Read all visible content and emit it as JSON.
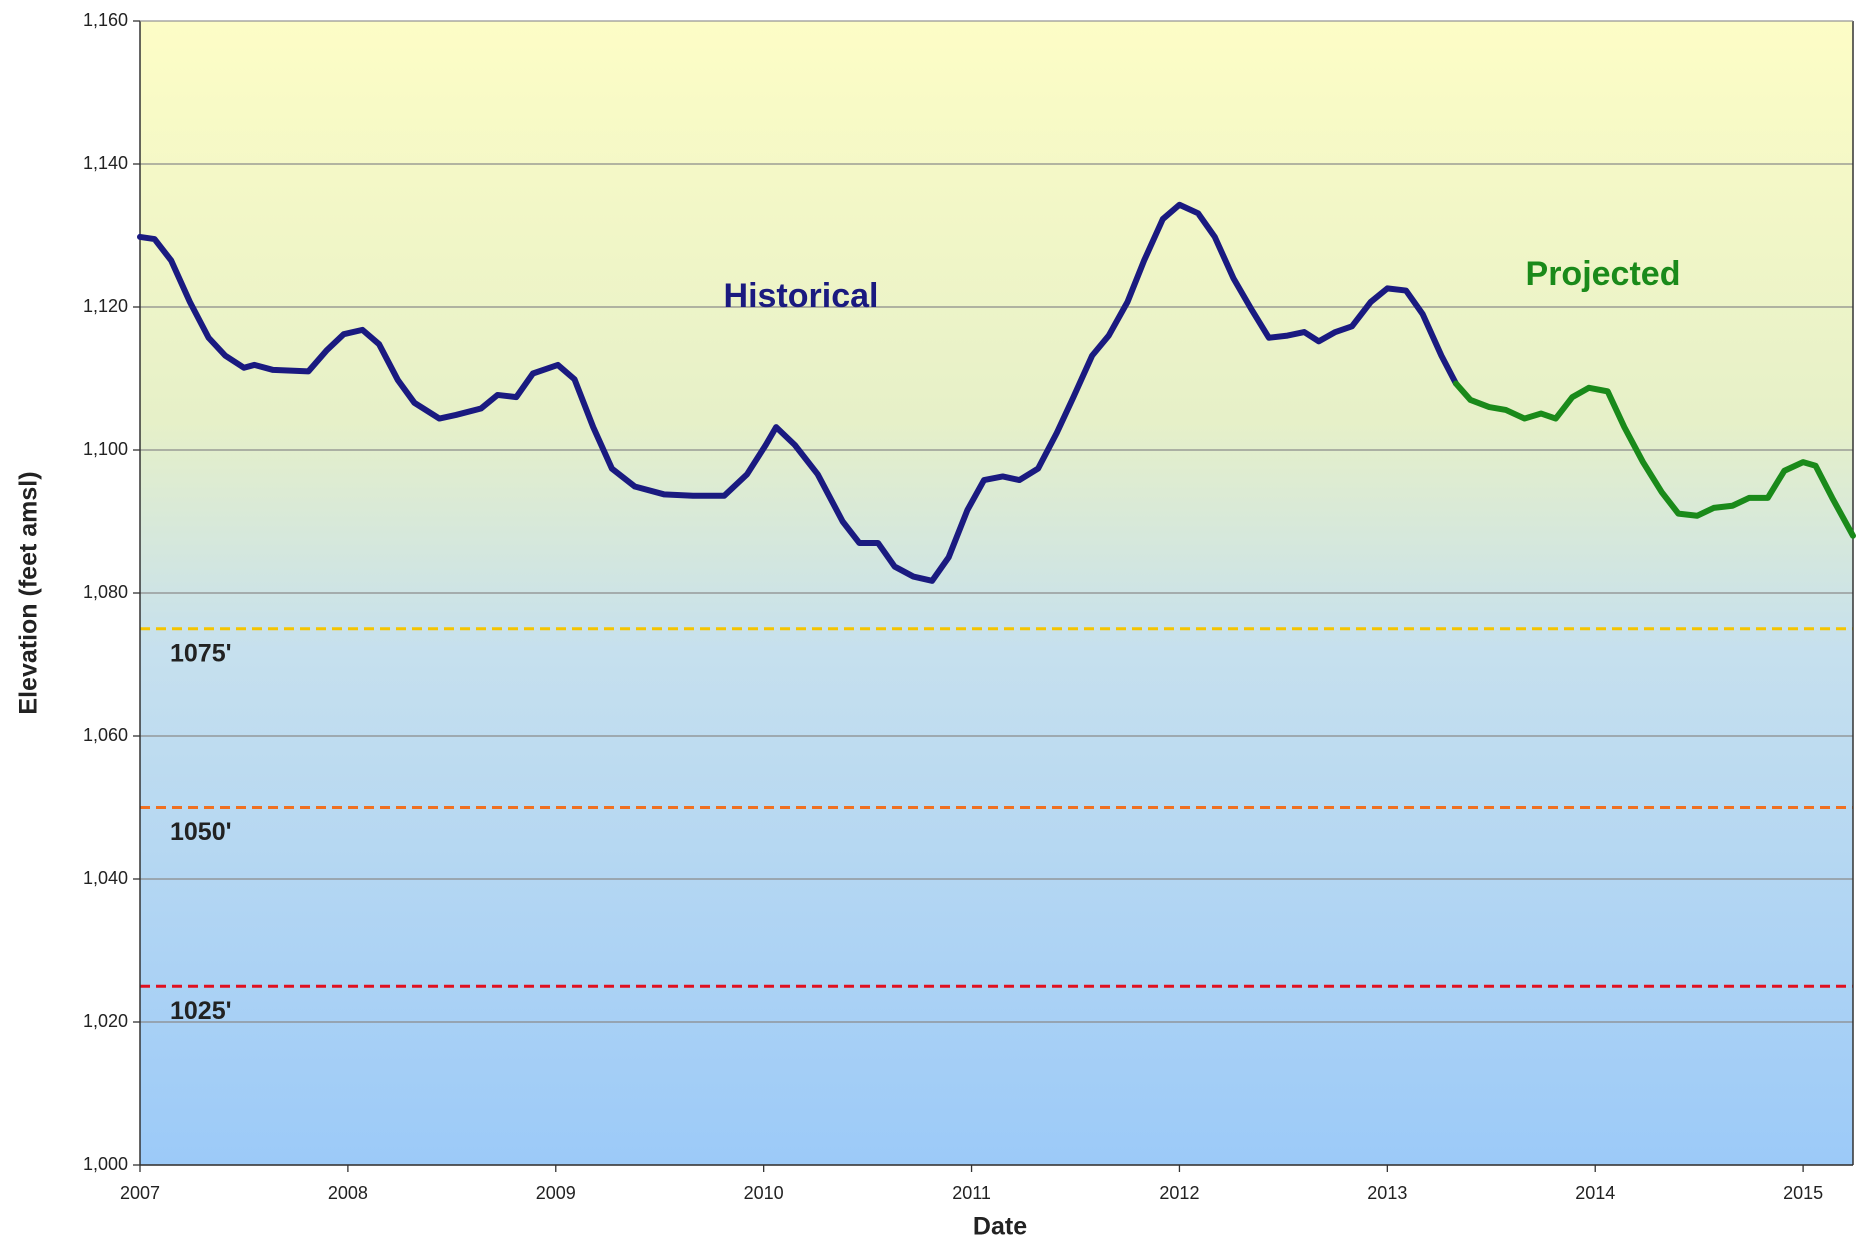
{
  "chart_data": {
    "type": "line",
    "xlabel": "Date",
    "ylabel": "Elevation (feet amsl)",
    "xlim": [
      2007,
      2015.24
    ],
    "xticks": [
      2007,
      2008,
      2009,
      2010,
      2011,
      2012,
      2013,
      2014,
      2015
    ],
    "ylim": [
      1000,
      1160
    ],
    "yticks": [
      {
        "value": 1000,
        "label": "1,000"
      },
      {
        "value": 1020,
        "label": "1,020"
      },
      {
        "value": 1040,
        "label": "1,040"
      },
      {
        "value": 1060,
        "label": "1,060"
      },
      {
        "value": 1080,
        "label": "1,080"
      },
      {
        "value": 1100,
        "label": "1,100"
      },
      {
        "value": 1120,
        "label": "1,120"
      },
      {
        "value": 1140,
        "label": "1,140"
      },
      {
        "value": 1160,
        "label": "1,160"
      }
    ],
    "grid": true,
    "reference_lines": [
      {
        "value": 1075,
        "label": "1075'",
        "color": "#f5c400"
      },
      {
        "value": 1050,
        "label": "1050'",
        "color": "#f07020"
      },
      {
        "value": 1025,
        "label": "1025'",
        "color": "#e01020"
      }
    ],
    "series": [
      {
        "name": "Historical",
        "color": "#1a1a80",
        "x": [
          2007.0,
          2007.07,
          2007.15,
          2007.24,
          2007.33,
          2007.41,
          2007.5,
          2007.55,
          2007.64,
          2007.81,
          2007.9,
          2007.98,
          2008.07,
          2008.15,
          2008.24,
          2008.32,
          2008.44,
          2008.52,
          2008.64,
          2008.72,
          2008.81,
          2008.89,
          2009.01,
          2009.09,
          2009.18,
          2009.27,
          2009.38,
          2009.52,
          2009.66,
          2009.81,
          2009.92,
          2010.01,
          2010.06,
          2010.15,
          2010.26,
          2010.38,
          2010.46,
          2010.55,
          2010.63,
          2010.72,
          2010.81,
          2010.89,
          2010.98,
          2011.06,
          2011.15,
          2011.23,
          2011.32,
          2011.41,
          2011.49,
          2011.58,
          2011.66,
          2011.75,
          2011.83,
          2011.92,
          2012.0,
          2012.09,
          2012.17,
          2012.26,
          2012.35,
          2012.43,
          2012.52,
          2012.6,
          2012.67,
          2012.75,
          2012.83,
          2012.92,
          2013.0,
          2013.09,
          2013.17,
          2013.26,
          2013.33
        ],
        "values": [
          1129.8,
          1129.5,
          1126.5,
          1120.7,
          1115.7,
          1113.2,
          1111.5,
          1111.9,
          1111.2,
          1111,
          1114,
          1116.2,
          1116.8,
          1114.8,
          1109.8,
          1106.6,
          1104.4,
          1104.9,
          1105.8,
          1107.7,
          1107.4,
          1110.7,
          1111.9,
          1109.9,
          1103.2,
          1097.4,
          1094.9,
          1093.8,
          1093.6,
          1093.6,
          1096.6,
          1100.7,
          1103.2,
          1100.7,
          1096.6,
          1090,
          1087,
          1087,
          1083.7,
          1082.3,
          1081.7,
          1085,
          1091.6,
          1095.8,
          1096.3,
          1095.8,
          1097.4,
          1102.4,
          1107.4,
          1113.2,
          1116,
          1120.7,
          1126.5,
          1132.3,
          1134.3,
          1133.1,
          1129.8,
          1124,
          1119.5,
          1115.7,
          1116,
          1116.5,
          1115.2,
          1116.5,
          1117.3,
          1120.7,
          1122.6,
          1122.3,
          1119,
          1113.2,
          1109.3
        ]
      },
      {
        "name": "Projected",
        "color": "#1a8a1a",
        "x": [
          2013.33,
          2013.4,
          2013.49,
          2013.57,
          2013.66,
          2013.74,
          2013.81,
          2013.89,
          2013.97,
          2014.06,
          2014.14,
          2014.23,
          2014.32,
          2014.4,
          2014.49,
          2014.57,
          2014.66,
          2014.74,
          2014.83,
          2014.91,
          2015.0,
          2015.06,
          2015.14,
          2015.24
        ],
        "values": [
          1109.3,
          1107,
          1106,
          1105.6,
          1104.4,
          1105.1,
          1104.4,
          1107.4,
          1108.7,
          1108.2,
          1103.2,
          1098.3,
          1094.1,
          1091.1,
          1090.8,
          1091.9,
          1092.2,
          1093.3,
          1093.3,
          1097.1,
          1098.3,
          1097.8,
          1093.3,
          1088
        ]
      }
    ]
  }
}
